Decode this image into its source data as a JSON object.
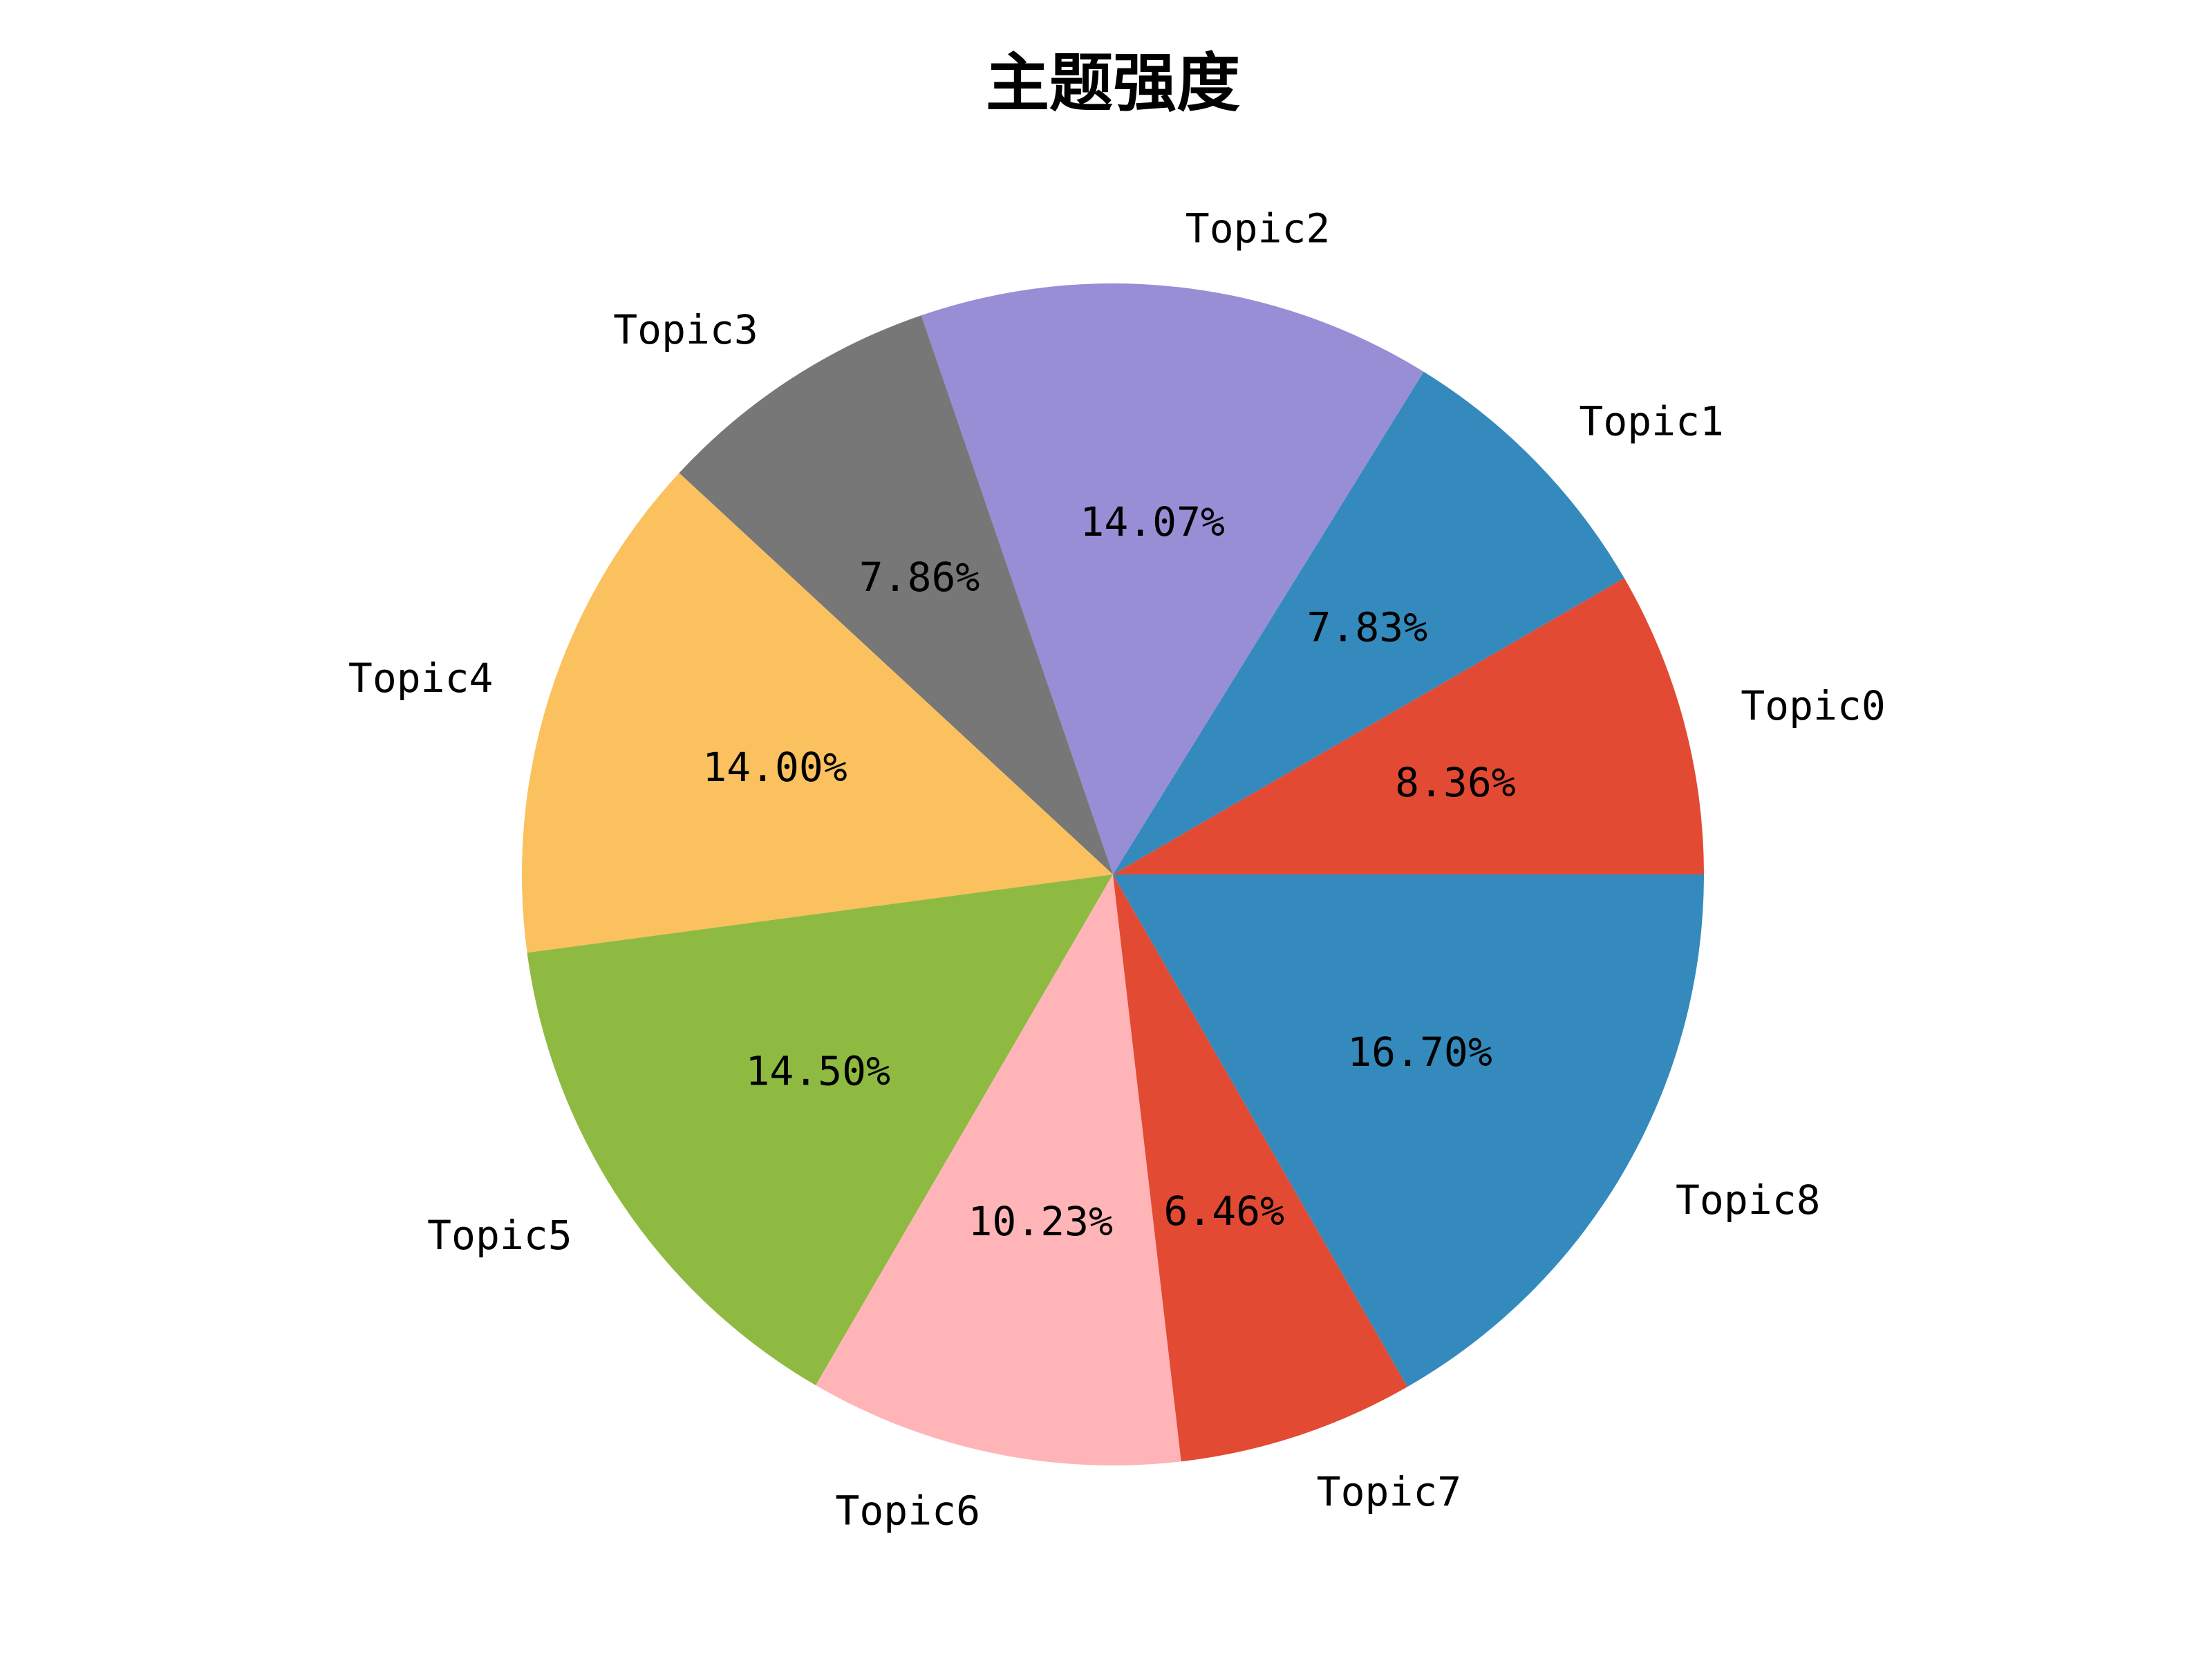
{
  "chart_data": {
    "type": "pie",
    "title": "主题强度",
    "slices": [
      {
        "label": "Topic0",
        "value": 8.36,
        "pct_label": "8.36%",
        "color": "#E24A33"
      },
      {
        "label": "Topic1",
        "value": 7.83,
        "pct_label": "7.83%",
        "color": "#348ABD"
      },
      {
        "label": "Topic2",
        "value": 14.07,
        "pct_label": "14.07%",
        "color": "#988ED5"
      },
      {
        "label": "Topic3",
        "value": 7.86,
        "pct_label": "7.86%",
        "color": "#777777"
      },
      {
        "label": "Topic4",
        "value": 14.0,
        "pct_label": "14.00%",
        "color": "#FBC15E"
      },
      {
        "label": "Topic5",
        "value": 14.5,
        "pct_label": "14.50%",
        "color": "#8EBA42"
      },
      {
        "label": "Topic6",
        "value": 10.23,
        "pct_label": "10.23%",
        "color": "#FFB5B8"
      },
      {
        "label": "Topic7",
        "value": 6.46,
        "pct_label": "6.46%",
        "color": "#E24A33"
      },
      {
        "label": "Topic8",
        "value": 16.7,
        "pct_label": "16.70%",
        "color": "#348ABD"
      }
    ],
    "start_angle_deg": 0,
    "direction": "counterclockwise",
    "legend": "none"
  }
}
